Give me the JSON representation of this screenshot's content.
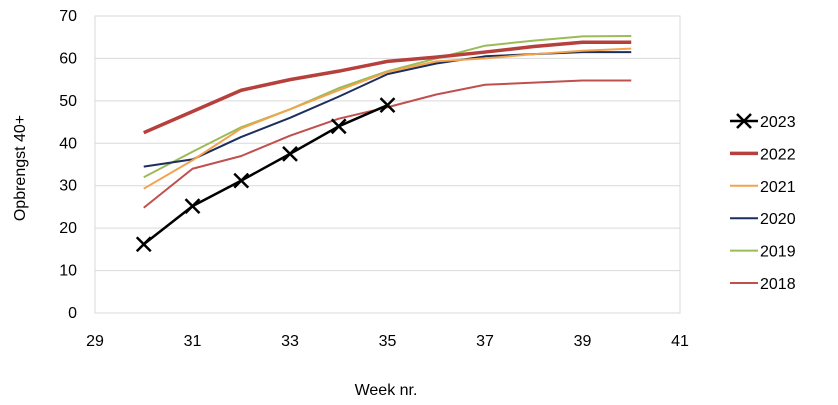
{
  "chart_data": {
    "type": "line",
    "title": "",
    "xlabel": "Week nr.",
    "ylabel": "Opbrengst 40+",
    "xlim": [
      29,
      41
    ],
    "ylim": [
      0,
      70
    ],
    "xticks": [
      29,
      31,
      33,
      35,
      37,
      39,
      41
    ],
    "yticks": [
      0,
      10,
      20,
      30,
      40,
      50,
      60,
      70
    ],
    "grid": "horizontal",
    "legend_position": "right",
    "series": [
      {
        "name": "2023",
        "color": "#000000",
        "marker": "x",
        "x": [
          30,
          31,
          32,
          33,
          34,
          35
        ],
        "y": [
          16.2,
          25.2,
          31.2,
          37.5,
          44.0,
          49.0
        ]
      },
      {
        "name": "2022",
        "color": "#b5403c",
        "marker": "none",
        "x": [
          30,
          31,
          32,
          33,
          34,
          35,
          36,
          37,
          38,
          39,
          40
        ],
        "y": [
          42.5,
          47.5,
          52.5,
          55.0,
          57.0,
          59.3,
          60.3,
          61.5,
          62.8,
          63.8,
          63.8
        ]
      },
      {
        "name": "2021",
        "color": "#f4a24b",
        "marker": "none",
        "x": [
          30,
          31,
          32,
          33,
          34,
          35,
          36,
          37,
          38,
          39,
          40
        ],
        "y": [
          29.3,
          36.0,
          43.5,
          48.0,
          52.5,
          56.8,
          59.3,
          60.0,
          61.0,
          61.8,
          62.3
        ]
      },
      {
        "name": "2020",
        "color": "#1b2e5e",
        "marker": "none",
        "x": [
          30,
          31,
          32,
          33,
          34,
          35,
          36,
          37,
          38,
          39,
          40
        ],
        "y": [
          34.5,
          36.2,
          41.5,
          46.0,
          51.0,
          56.3,
          58.8,
          60.5,
          61.0,
          61.5,
          61.5
        ]
      },
      {
        "name": "2019",
        "color": "#9bbb59",
        "marker": "none",
        "x": [
          30,
          31,
          32,
          33,
          34,
          35,
          36,
          37,
          38,
          39,
          40
        ],
        "y": [
          32.0,
          38.0,
          43.8,
          48.0,
          53.0,
          57.0,
          60.0,
          63.0,
          64.2,
          65.2,
          65.3
        ]
      },
      {
        "name": "2018",
        "color": "#c0504d",
        "marker": "none",
        "x": [
          30,
          31,
          32,
          33,
          34,
          35,
          36,
          37,
          38,
          39,
          40
        ],
        "y": [
          24.8,
          34.0,
          37.0,
          41.8,
          45.8,
          48.5,
          51.5,
          53.8,
          54.3,
          54.8,
          54.8
        ]
      }
    ]
  }
}
